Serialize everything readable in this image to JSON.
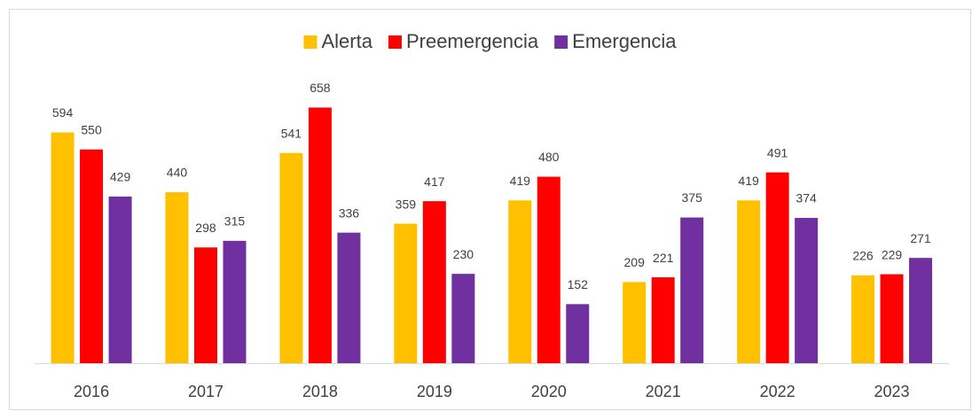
{
  "chart_data": {
    "type": "bar",
    "categories": [
      "2016",
      "2017",
      "2018",
      "2019",
      "2020",
      "2021",
      "2022",
      "2023"
    ],
    "series": [
      {
        "name": "Alerta",
        "color": "#FFC000",
        "values": [
          594,
          440,
          541,
          359,
          419,
          209,
          419,
          226
        ]
      },
      {
        "name": "Preemergencia",
        "color": "#FF0000",
        "values": [
          550,
          298,
          658,
          417,
          480,
          221,
          491,
          229
        ]
      },
      {
        "name": "Emergencia",
        "color": "#7030A0",
        "values": [
          429,
          315,
          336,
          230,
          152,
          375,
          374,
          271
        ]
      }
    ],
    "ylim": [
      0,
      700
    ],
    "legend": "top"
  }
}
